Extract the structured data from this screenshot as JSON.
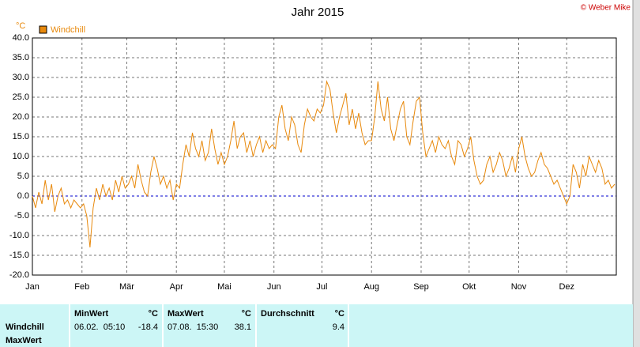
{
  "chart_data": {
    "type": "line",
    "title": "Jahr 2015",
    "copyright": "© Weber Mike",
    "y_unit": "°C",
    "xlim": [
      0,
      365
    ],
    "xticks": [
      {
        "value": 0,
        "label": "Jan"
      },
      {
        "value": 31,
        "label": "Feb"
      },
      {
        "value": 59,
        "label": "Mär"
      },
      {
        "value": 90,
        "label": "Apr"
      },
      {
        "value": 120,
        "label": "Mai"
      },
      {
        "value": 151,
        "label": "Jun"
      },
      {
        "value": 181,
        "label": "Jul"
      },
      {
        "value": 212,
        "label": "Aug"
      },
      {
        "value": 243,
        "label": "Sep"
      },
      {
        "value": 273,
        "label": "Okt"
      },
      {
        "value": 304,
        "label": "Nov"
      },
      {
        "value": 334,
        "label": "Dez"
      }
    ],
    "ylim": [
      -20,
      40
    ],
    "yticks": [
      {
        "value": -20,
        "label": "-20.0"
      },
      {
        "value": -15,
        "label": "-15.0"
      },
      {
        "value": -10,
        "label": "-10.0"
      },
      {
        "value": -5,
        "label": "-5.0"
      },
      {
        "value": 0,
        "label": "0.0"
      },
      {
        "value": 5,
        "label": "5.0"
      },
      {
        "value": 10,
        "label": "10.0"
      },
      {
        "value": 15,
        "label": "15.0"
      },
      {
        "value": 20,
        "label": "20.0"
      },
      {
        "value": 25,
        "label": "25.0"
      },
      {
        "value": 30,
        "label": "30.0"
      },
      {
        "value": 35,
        "label": "35.0"
      },
      {
        "value": 40,
        "label": "40.0"
      }
    ],
    "grid": true,
    "zero_line_color": "#0000cc",
    "x": [
      0,
      2,
      4,
      6,
      8,
      10,
      12,
      14,
      16,
      18,
      20,
      22,
      24,
      26,
      28,
      30,
      32,
      34,
      36,
      38,
      40,
      42,
      44,
      46,
      48,
      50,
      52,
      54,
      56,
      58,
      60,
      62,
      64,
      66,
      68,
      70,
      72,
      74,
      76,
      78,
      80,
      82,
      84,
      86,
      88,
      90,
      92,
      94,
      96,
      98,
      100,
      102,
      104,
      106,
      108,
      110,
      112,
      114,
      116,
      118,
      120,
      122,
      124,
      126,
      128,
      130,
      132,
      134,
      136,
      138,
      140,
      142,
      144,
      146,
      148,
      150,
      152,
      154,
      156,
      158,
      160,
      162,
      164,
      166,
      168,
      170,
      172,
      174,
      176,
      178,
      180,
      182,
      184,
      186,
      188,
      190,
      192,
      194,
      196,
      198,
      200,
      202,
      204,
      206,
      208,
      210,
      212,
      214,
      216,
      218,
      220,
      222,
      224,
      226,
      228,
      230,
      232,
      234,
      236,
      238,
      240,
      242,
      244,
      246,
      248,
      250,
      252,
      254,
      256,
      258,
      260,
      262,
      264,
      266,
      268,
      270,
      272,
      274,
      276,
      278,
      280,
      282,
      284,
      286,
      288,
      290,
      292,
      294,
      296,
      298,
      300,
      302,
      304,
      306,
      308,
      310,
      312,
      314,
      316,
      318,
      320,
      322,
      324,
      326,
      328,
      330,
      332,
      334,
      336,
      338,
      340,
      342,
      344,
      346,
      348,
      350,
      352,
      354,
      356,
      358,
      360,
      362,
      364
    ],
    "series": [
      {
        "name": "Windchill",
        "color": "#e8890c",
        "values": [
          0,
          -3,
          1,
          -2,
          4,
          -1,
          3,
          -4,
          0,
          2,
          -2,
          -1,
          -3,
          -1,
          -2,
          -3,
          -2,
          -5,
          -13,
          -3,
          2,
          -1,
          3,
          0,
          2,
          -1,
          4,
          1,
          5,
          2,
          3,
          5,
          2,
          8,
          4,
          1,
          0,
          6,
          10,
          7,
          3,
          5,
          2,
          4,
          -1,
          3,
          2,
          8,
          13,
          10,
          16,
          12,
          10,
          14,
          9,
          11,
          17,
          12,
          8,
          11,
          8,
          10,
          14,
          19,
          12,
          15,
          16,
          11,
          14,
          10,
          13,
          15,
          11,
          14,
          12,
          13,
          12,
          20,
          23,
          17,
          14,
          20,
          18,
          13,
          11,
          18,
          22,
          20,
          19,
          22,
          21,
          23,
          29,
          27,
          21,
          16,
          20,
          23,
          26,
          18,
          22,
          17,
          21,
          16,
          13,
          14,
          14,
          20,
          29,
          22,
          19,
          25,
          17,
          14,
          18,
          22,
          24,
          15,
          13,
          19,
          24,
          25,
          16,
          10,
          12,
          14,
          11,
          15,
          13,
          12,
          14,
          10,
          8,
          14,
          13,
          10,
          12,
          15,
          9,
          5,
          3,
          4,
          8,
          10,
          6,
          8,
          11,
          9,
          5,
          7,
          10,
          6,
          12,
          15,
          10,
          7,
          5,
          6,
          9,
          11,
          8,
          7,
          5,
          3,
          4,
          2,
          0,
          -2,
          0,
          8,
          6,
          2,
          8,
          5,
          10,
          8,
          6,
          9,
          7,
          3,
          4,
          2,
          3
        ]
      }
    ]
  },
  "table": {
    "row_labels": [
      "Windchill",
      "MaxWert"
    ],
    "columns": [
      {
        "header": "MinWert",
        "unit": "°C",
        "date": "06.02.  05:10",
        "value": "-18.4"
      },
      {
        "header": "MaxWert",
        "unit": "°C",
        "date": "07.08.  15:30",
        "value": "38.1"
      },
      {
        "header": "Durchschnitt",
        "unit": "°C",
        "date": "",
        "value": "9.4"
      }
    ]
  }
}
